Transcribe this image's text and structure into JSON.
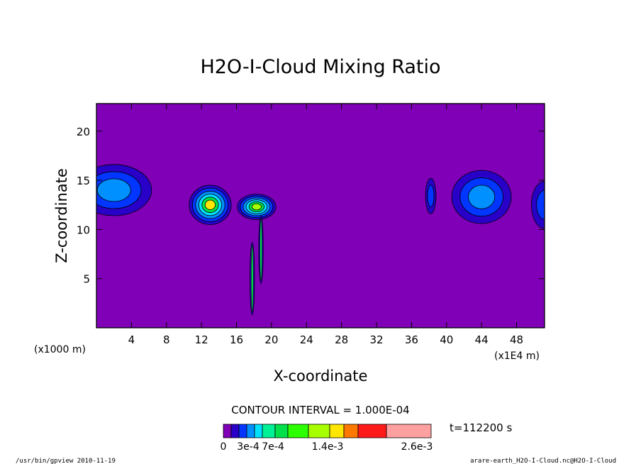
{
  "chart_data": {
    "type": "contour",
    "title": "H2O-I-Cloud Mixing Ratio",
    "xlabel": "X-coordinate",
    "ylabel": "Z-coordinate",
    "x_unit_left": "(x1000 m)",
    "x_unit_right": "(x1E4 m)",
    "xlim": [
      0,
      51.2
    ],
    "ylim": [
      0,
      22.8
    ],
    "x_ticks": [
      4,
      8,
      12,
      16,
      20,
      24,
      28,
      32,
      36,
      40,
      44,
      48
    ],
    "y_ticks": [
      5,
      10,
      15,
      20
    ],
    "x_tick_labels": [
      "4",
      "8",
      "12",
      "16",
      "20",
      "24",
      "28",
      "32",
      "36",
      "40",
      "44",
      "48"
    ],
    "y_tick_labels": [
      "5",
      "10",
      "15",
      "20"
    ],
    "contour_interval_text": "CONTOUR INTERVAL = 1.000E-04",
    "time_text": "t=112200 s",
    "background_color": "#7f00b6",
    "colorbar": {
      "colors": [
        "#7f00b6",
        "#2800c8",
        "#0036ff",
        "#0090ff",
        "#00e0ff",
        "#00f096",
        "#00e04a",
        "#2cff00",
        "#a8ff00",
        "#ffe600",
        "#ff7800",
        "#ff1a1a",
        "#ffa0a0"
      ],
      "labels": [
        "0",
        "3e-4",
        "7e-4",
        "1.4e-3",
        "2.6e-3"
      ]
    },
    "blobs": [
      {
        "cx": 2.0,
        "cz": 14.0,
        "rx": 4.3,
        "rz": 2.6,
        "levels": [
          "#2800c8",
          "#0036ff",
          "#0090ff"
        ]
      },
      {
        "cx": 13.0,
        "cz": 12.5,
        "rx": 2.4,
        "rz": 2.0,
        "levels": [
          "#2800c8",
          "#0036ff",
          "#0090ff",
          "#00e0ff",
          "#00e04a",
          "#ffe600"
        ]
      },
      {
        "cx": 18.3,
        "cz": 12.3,
        "rx": 2.2,
        "rz": 1.3,
        "levels": [
          "#2800c8",
          "#0036ff",
          "#0090ff",
          "#00e0ff",
          "#00e04a",
          "#a8ff00"
        ]
      },
      {
        "cx": 38.2,
        "cz": 13.4,
        "rx": 0.6,
        "rz": 1.8,
        "levels": [
          "#2800c8",
          "#0036ff"
        ]
      },
      {
        "cx": 44.0,
        "cz": 13.3,
        "rx": 3.4,
        "rz": 2.7,
        "levels": [
          "#2800c8",
          "#0036ff",
          "#0090ff"
        ]
      },
      {
        "cx": 51.2,
        "cz": 12.5,
        "rx": 1.5,
        "rz": 2.4,
        "levels": [
          "#2800c8",
          "#0036ff"
        ]
      }
    ],
    "filaments": [
      {
        "x": 17.8,
        "z0": 1.3,
        "z1": 8.7
      },
      {
        "x": 18.8,
        "z0": 4.5,
        "z1": 11.4
      }
    ]
  },
  "footer": {
    "left": "/usr/bin/gpview  2010-11-19",
    "right": "arare-earth_H2O-I-Cloud.nc@H2O-I-Cloud"
  }
}
